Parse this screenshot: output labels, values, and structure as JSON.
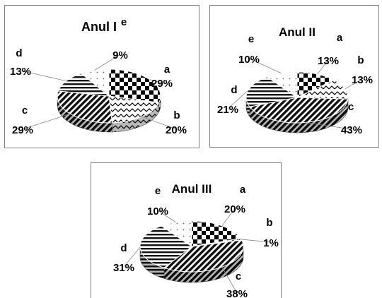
{
  "chart_data": [
    {
      "type": "pie",
      "title": "Anul I",
      "categories": [
        "a",
        "b",
        "c",
        "d",
        "e"
      ],
      "values": [
        29,
        20,
        29,
        13,
        9
      ],
      "value_labels": [
        "29%",
        "20%",
        "29%",
        "13%",
        "9%"
      ],
      "legend": "none"
    },
    {
      "type": "pie",
      "title": "Anul II",
      "categories": [
        "a",
        "b",
        "c",
        "d",
        "e"
      ],
      "values": [
        13,
        13,
        43,
        21,
        10
      ],
      "value_labels": [
        "13%",
        "13%",
        "43%",
        "21%",
        "10%"
      ],
      "legend": "none"
    },
    {
      "type": "pie",
      "title": "Anul III",
      "categories": [
        "a",
        "b",
        "c",
        "d",
        "e"
      ],
      "values": [
        20,
        1,
        38,
        31,
        10
      ],
      "value_labels": [
        "20%",
        "1%",
        "38%",
        "31%",
        "10%"
      ],
      "legend": "none"
    }
  ]
}
